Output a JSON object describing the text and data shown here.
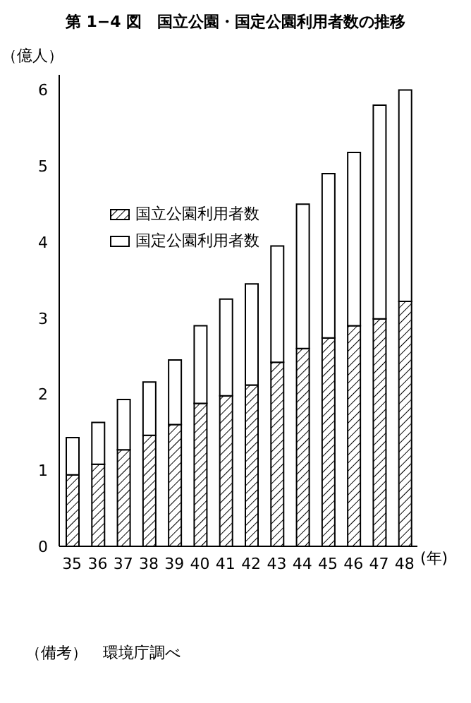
{
  "chart_data": {
    "type": "bar",
    "title": "第 1−4 図　国立公園・国定公園利用者数の推移",
    "ylabel": "（億人）",
    "xlabel": "(年)",
    "annotations": [
      "（備考）　環境庁調べ"
    ],
    "categories": [
      "35",
      "36",
      "37",
      "38",
      "39",
      "40",
      "41",
      "42",
      "43",
      "44",
      "45",
      "46",
      "47",
      "48"
    ],
    "stacked": true,
    "ylim": [
      0,
      6.2
    ],
    "yticks": [
      0,
      1,
      2,
      3,
      4,
      5,
      6
    ],
    "grid": false,
    "legend": "top left",
    "series": [
      {
        "name": "国立公園利用者数",
        "color": "#000000",
        "values": [
          0.94,
          1.08,
          1.27,
          1.46,
          1.6,
          1.88,
          1.98,
          2.12,
          2.42,
          2.6,
          2.74,
          2.9,
          2.99,
          3.22
        ]
      },
      {
        "name": "国定公園利用者数",
        "color": "#ffffff",
        "values": [
          0.49,
          0.55,
          0.66,
          0.7,
          0.85,
          1.02,
          1.27,
          1.33,
          1.53,
          1.9,
          2.16,
          2.28,
          2.81,
          2.78
        ]
      }
    ]
  }
}
